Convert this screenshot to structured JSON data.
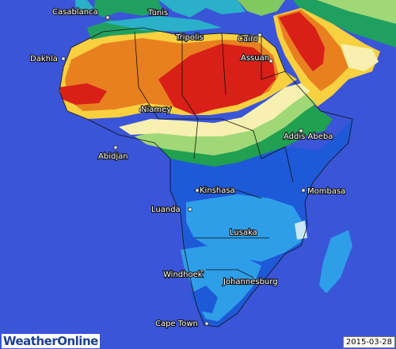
{
  "map": {
    "date": "2015-03-28",
    "brand": {
      "part1": "Weather",
      "part2": "Online"
    },
    "cities": [
      {
        "name": "Casablanca"
      },
      {
        "name": "Tunis"
      },
      {
        "name": "Tripolis"
      },
      {
        "name": "Cairo"
      },
      {
        "name": "Dakhla"
      },
      {
        "name": "Assuan"
      },
      {
        "name": "Niamey"
      },
      {
        "name": "Addis Abeba"
      },
      {
        "name": "Abidjan"
      },
      {
        "name": "Kinshasa"
      },
      {
        "name": "Mombasa"
      },
      {
        "name": "Luanda"
      },
      {
        "name": "Lusaka"
      },
      {
        "name": "Windhoek"
      },
      {
        "name": "Johannesburg"
      },
      {
        "name": "Cape Town"
      }
    ],
    "colors": {
      "ocean": "#3a55d8",
      "land_blue": "#1e5ad8",
      "light_blue": "#2e9ee8",
      "green": "#20a050",
      "light_green": "#a0d878",
      "cream": "#f8f0b0",
      "yellow": "#f8d040",
      "orange": "#e88020",
      "red": "#d82018",
      "dark_red": "#c01010"
    }
  }
}
